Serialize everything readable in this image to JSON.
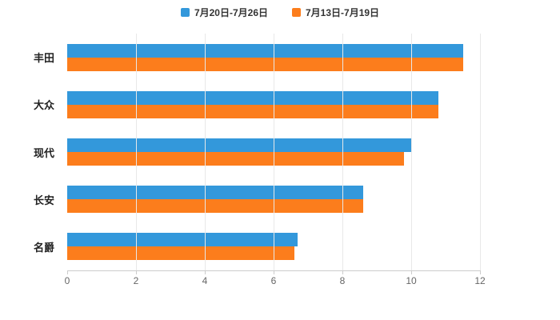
{
  "chart_data": {
    "type": "bar",
    "orientation": "horizontal",
    "title": "",
    "categories": [
      "丰田",
      "大众",
      "现代",
      "长安",
      "名爵"
    ],
    "series": [
      {
        "name": "7月20日-7月26日",
        "color": "#3398DB",
        "values": [
          11.5,
          10.8,
          10.0,
          8.6,
          6.7
        ]
      },
      {
        "name": "7月13日-7月19日",
        "color": "#FC7D1C",
        "values": [
          11.5,
          10.8,
          9.8,
          8.6,
          6.6
        ]
      }
    ],
    "xlim": [
      0,
      12
    ],
    "xticks": [
      0,
      2,
      4,
      6,
      8,
      10,
      12
    ],
    "grid": true,
    "legend_position": "top"
  }
}
